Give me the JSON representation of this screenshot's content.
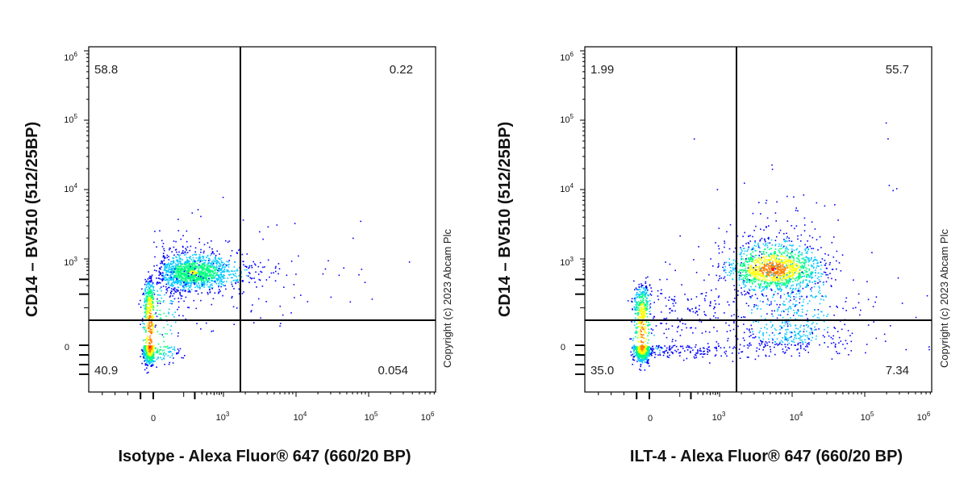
{
  "chart_data": [
    {
      "type": "scatter",
      "subtype": "flow-cytometry-density-dot-plot",
      "xlabel": "Isotype - Alexa Fluor® 647 (660/20 BP)",
      "ylabel": "CD14 – BV510 (512/25BP)",
      "x_scale": "biexponential",
      "y_scale": "biexponential",
      "xlim": [
        -1000,
        1000000
      ],
      "ylim": [
        -800,
        1000000
      ],
      "x_ticks": [
        "0",
        "10^3",
        "10^4",
        "10^5",
        "10^6"
      ],
      "y_ticks": [
        "0",
        "10^3",
        "10^4",
        "10^5",
        "10^6"
      ],
      "quadrants": [
        {
          "position": "top-left",
          "value": "58.8"
        },
        {
          "position": "top-right",
          "value": "0.22"
        },
        {
          "position": "bottom-left",
          "value": "40.9"
        },
        {
          "position": "bottom-right",
          "value": "0.054"
        }
      ],
      "gate": {
        "x": 2000,
        "y": 250
      },
      "populations": [
        {
          "x": 150,
          "y": 500,
          "density": "high"
        },
        {
          "x": -60,
          "y": -30,
          "density": "very high"
        }
      ],
      "copyright": "Copyright (c) 2023 Abcam Plc"
    },
    {
      "type": "scatter",
      "subtype": "flow-cytometry-density-dot-plot",
      "xlabel": "ILT-4 - Alexa Fluor® 647 (660/20 BP)",
      "ylabel": "CD14 – BV510 (512/25BP)",
      "x_scale": "biexponential",
      "y_scale": "biexponential",
      "xlim": [
        -1000,
        1000000
      ],
      "ylim": [
        -800,
        1000000
      ],
      "x_ticks": [
        "0",
        "10^3",
        "10^4",
        "10^5",
        "10^6"
      ],
      "y_ticks": [
        "0",
        "10^3",
        "10^4",
        "10^5",
        "10^6"
      ],
      "quadrants": [
        {
          "position": "top-left",
          "value": "1.99"
        },
        {
          "position": "top-right",
          "value": "55.7"
        },
        {
          "position": "bottom-left",
          "value": "35.0"
        },
        {
          "position": "bottom-right",
          "value": "7.34"
        }
      ],
      "gate": {
        "x": 2000,
        "y": 250
      },
      "populations": [
        {
          "x": 6000,
          "y": 600,
          "density": "very high"
        },
        {
          "x": -80,
          "y": -20,
          "density": "very high"
        },
        {
          "x": 9000,
          "y": 50,
          "density": "medium"
        }
      ],
      "copyright": "Copyright (c) 2023 Abcam Plc"
    }
  ],
  "colors": {
    "density_scale": [
      "#0000ff",
      "#00c8ff",
      "#00ff80",
      "#ffff00",
      "#ff8000",
      "#ff0000"
    ],
    "axis": "#000000",
    "gate": "#000000"
  }
}
